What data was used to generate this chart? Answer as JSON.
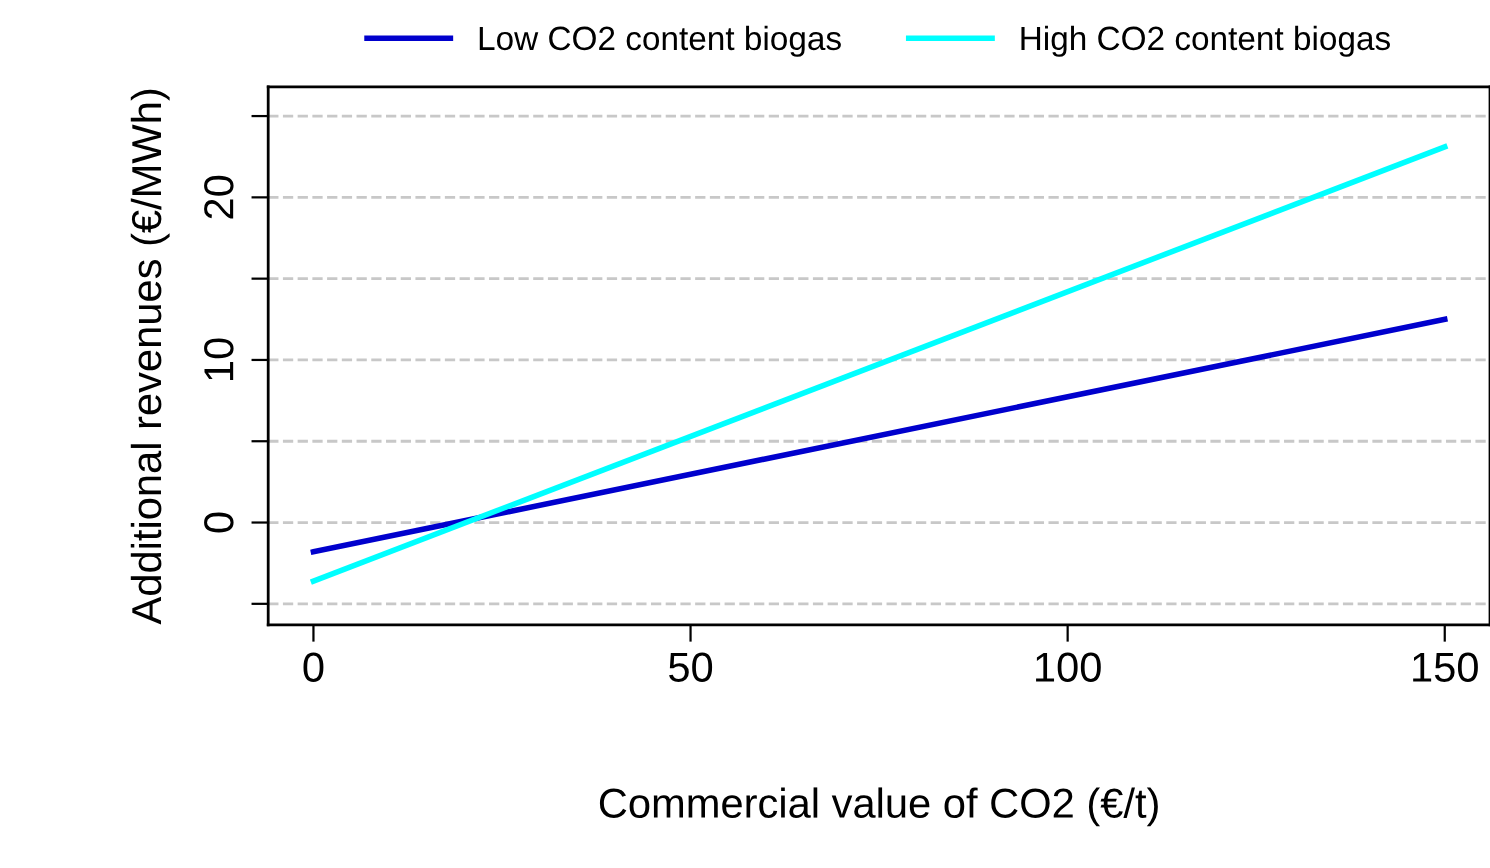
{
  "chart_data": {
    "type": "line",
    "xlabel": "Commercial value of CO2 (€/t)",
    "ylabel": "Additional revenues (€/MWh)",
    "x": [
      0,
      150
    ],
    "series": [
      {
        "name": "Low CO2 content biogas",
        "color": "#0000cd",
        "values": [
          -1.8,
          12.5
        ]
      },
      {
        "name": "High CO2 content biogas",
        "color": "#00ffff",
        "values": [
          -3.6,
          23.1
        ]
      }
    ],
    "xlim": [
      -6,
      156
    ],
    "ylim": [
      -6.3,
      26.8
    ],
    "xticks": [
      0,
      50,
      100,
      150
    ],
    "yticks": [
      {
        "value": -5,
        "label": null
      },
      0,
      {
        "value": 5,
        "label": null
      },
      10,
      {
        "value": 15,
        "label": null
      },
      20,
      {
        "value": 25,
        "label": null
      }
    ],
    "grid": "y",
    "legend": "top",
    "marker": "none",
    "line_style": "solid"
  }
}
